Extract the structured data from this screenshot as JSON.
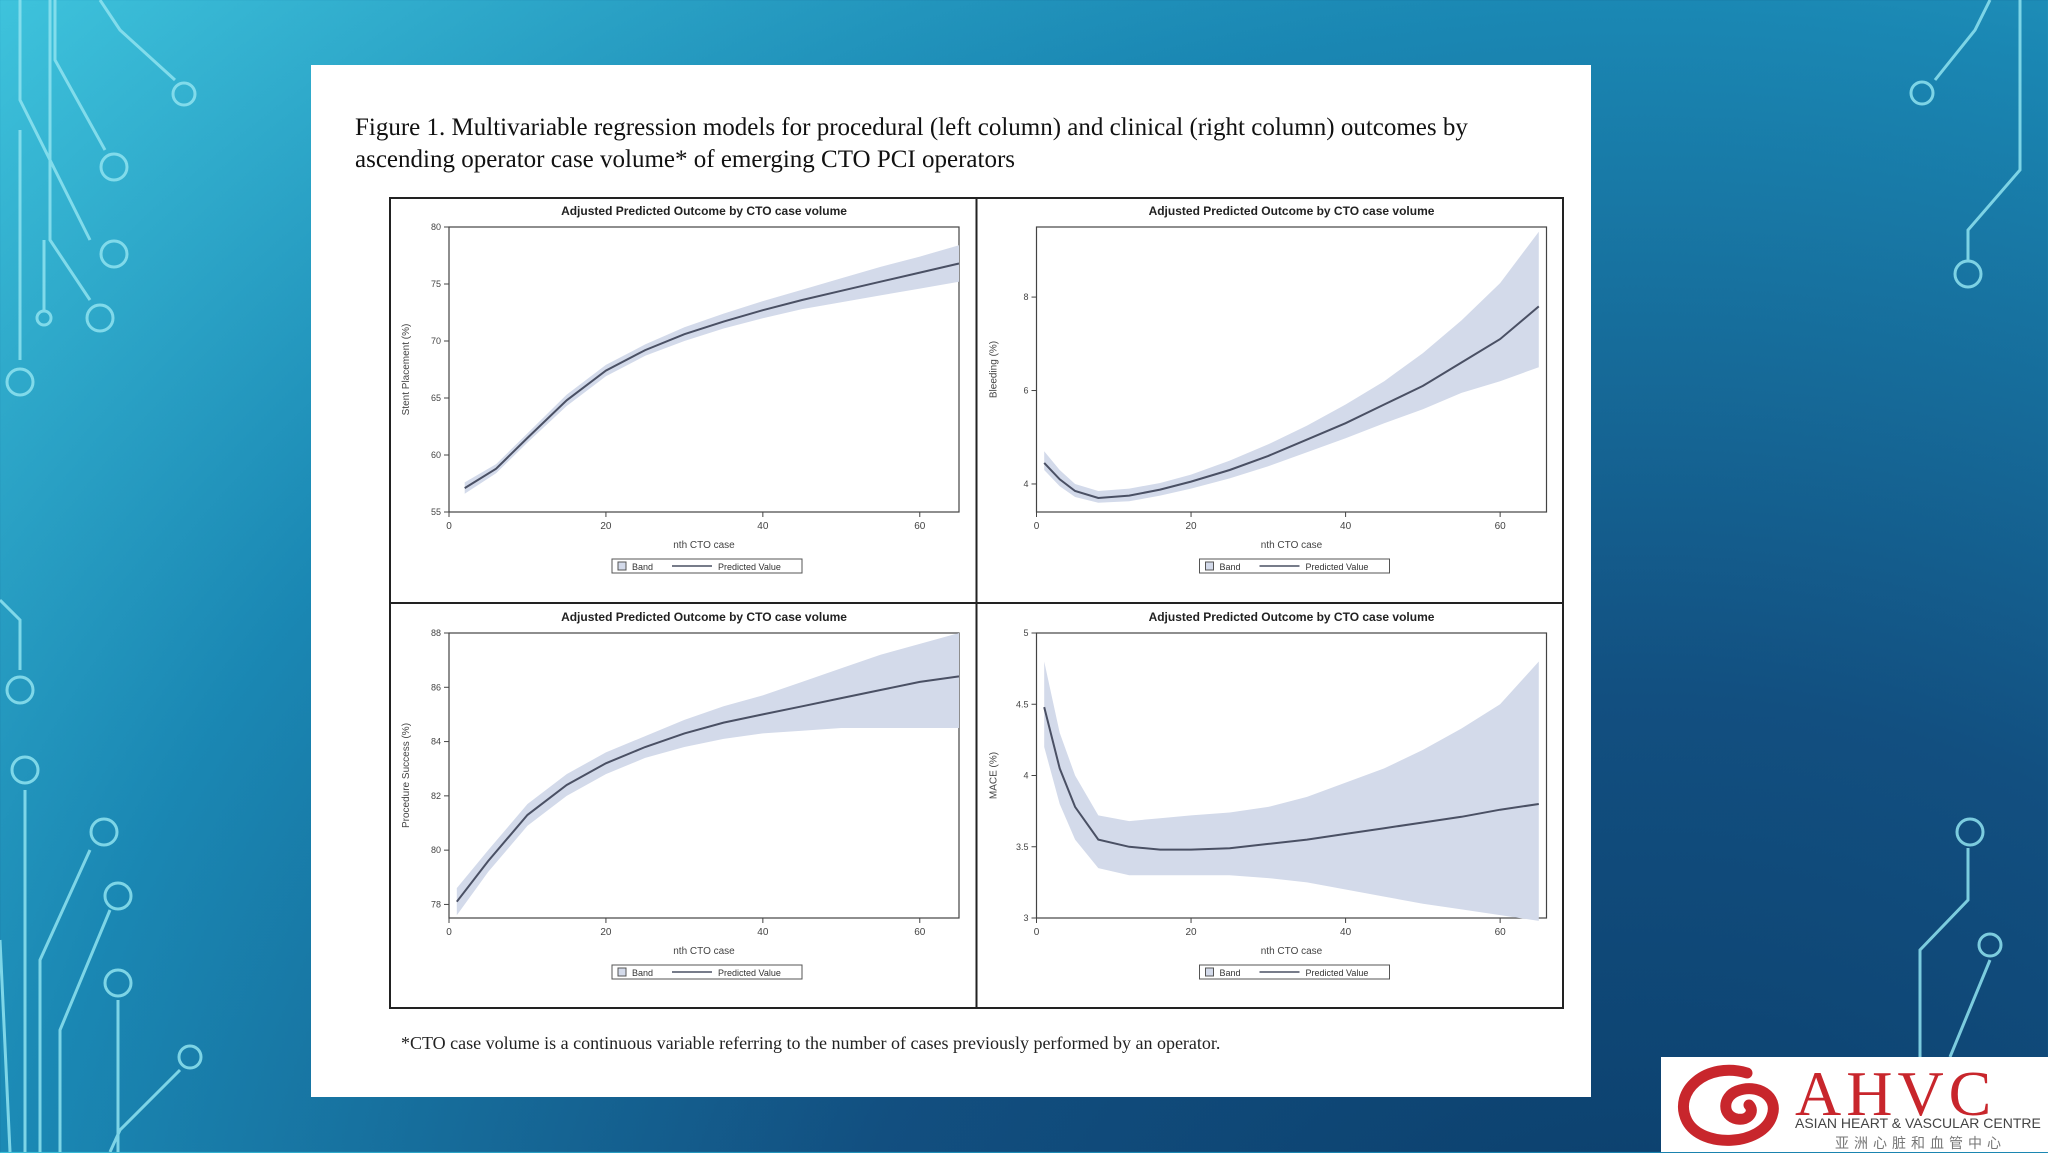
{
  "figure_title": "Figure 1. Multivariable regression models for procedural (left column) and clinical (right column) outcomes by ascending operator case volume* of emerging CTO PCI operators",
  "footnote": "*CTO case volume is a continuous variable referring to the number of cases previously performed by an operator.",
  "logo": {
    "text": "AHVC",
    "subtitle": "ASIAN HEART & VASCULAR CENTRE",
    "chinese": "亚洲心脏和血管中心"
  },
  "colors": {
    "band": "#d3daea",
    "line": "#4a5064",
    "frame": "#222222"
  },
  "chart_data": [
    {
      "type": "line",
      "title": "Adjusted Predicted Outcome by CTO case volume",
      "xlabel": "nth CTO case",
      "ylabel": "Stent Placement (%)",
      "xlim": [
        0,
        65
      ],
      "ylim": [
        55,
        80
      ],
      "xticks": [
        0,
        20,
        40,
        60
      ],
      "yticks": [
        55,
        60,
        65,
        70,
        75,
        80
      ],
      "x": [
        2,
        6,
        10,
        15,
        20,
        25,
        30,
        35,
        40,
        45,
        50,
        55,
        60,
        65
      ],
      "series": [
        {
          "name": "Predicted Value",
          "values": [
            57.1,
            58.8,
            61.5,
            64.8,
            67.4,
            69.2,
            70.6,
            71.7,
            72.7,
            73.6,
            74.4,
            75.2,
            76.0,
            76.8
          ]
        },
        {
          "name": "Band",
          "role": "lower",
          "values": [
            56.6,
            58.4,
            61.1,
            64.3,
            66.9,
            68.7,
            70.0,
            71.1,
            72.0,
            72.8,
            73.4,
            74.0,
            74.6,
            75.2
          ]
        },
        {
          "name": "Band",
          "role": "upper",
          "values": [
            57.6,
            59.2,
            61.9,
            65.3,
            67.9,
            69.7,
            71.2,
            72.4,
            73.5,
            74.5,
            75.5,
            76.5,
            77.4,
            78.4
          ]
        }
      ],
      "legend": [
        "Band",
        "Predicted Value"
      ],
      "legend_position": "bottom"
    },
    {
      "type": "line",
      "title": "Adjusted Predicted Outcome by CTO case volume",
      "xlabel": "nth CTO case",
      "ylabel": "Bleeding (%)",
      "xlim": [
        0,
        66
      ],
      "ylim": [
        3.4,
        9.5
      ],
      "xticks": [
        0,
        20,
        40,
        60
      ],
      "yticks": [
        4,
        6,
        8
      ],
      "x": [
        1,
        3,
        5,
        8,
        12,
        16,
        20,
        25,
        30,
        35,
        40,
        45,
        50,
        55,
        60,
        65
      ],
      "series": [
        {
          "name": "Predicted Value",
          "values": [
            4.45,
            4.1,
            3.85,
            3.7,
            3.75,
            3.88,
            4.05,
            4.3,
            4.6,
            4.95,
            5.3,
            5.7,
            6.1,
            6.6,
            7.1,
            7.8
          ]
        },
        {
          "name": "Band",
          "role": "lower",
          "values": [
            4.3,
            3.95,
            3.72,
            3.6,
            3.63,
            3.75,
            3.9,
            4.12,
            4.38,
            4.68,
            4.98,
            5.3,
            5.6,
            5.95,
            6.2,
            6.5
          ]
        },
        {
          "name": "Band",
          "role": "upper",
          "values": [
            4.7,
            4.3,
            4.0,
            3.85,
            3.9,
            4.02,
            4.2,
            4.5,
            4.85,
            5.25,
            5.7,
            6.2,
            6.8,
            7.5,
            8.3,
            9.4
          ]
        }
      ],
      "legend": [
        "Band",
        "Predicted Value"
      ],
      "legend_position": "bottom"
    },
    {
      "type": "line",
      "title": "Adjusted Predicted Outcome by CTO case volume",
      "xlabel": "nth CTO case",
      "ylabel": "Procedure Success (%)",
      "xlim": [
        0,
        65
      ],
      "ylim": [
        77.5,
        88
      ],
      "xticks": [
        0,
        20,
        40,
        60
      ],
      "yticks": [
        78,
        80,
        82,
        84,
        86,
        88
      ],
      "x": [
        1,
        5,
        10,
        15,
        20,
        25,
        30,
        35,
        40,
        45,
        50,
        55,
        60,
        65
      ],
      "series": [
        {
          "name": "Predicted Value",
          "values": [
            78.1,
            79.6,
            81.3,
            82.4,
            83.2,
            83.8,
            84.3,
            84.7,
            85.0,
            85.3,
            85.6,
            85.9,
            86.2,
            86.4
          ]
        },
        {
          "name": "Band",
          "role": "lower",
          "values": [
            77.6,
            79.2,
            80.9,
            82.0,
            82.8,
            83.4,
            83.8,
            84.1,
            84.3,
            84.4,
            84.5,
            84.5,
            84.5,
            84.5
          ]
        },
        {
          "name": "Band",
          "role": "upper",
          "values": [
            78.6,
            80.0,
            81.7,
            82.8,
            83.6,
            84.2,
            84.8,
            85.3,
            85.7,
            86.2,
            86.7,
            87.2,
            87.6,
            88.0
          ]
        }
      ],
      "legend": [
        "Band",
        "Predicted Value"
      ],
      "legend_position": "bottom"
    },
    {
      "type": "line",
      "title": "Adjusted Predicted Outcome by CTO case volume",
      "xlabel": "nth CTO case",
      "ylabel": "MACE (%)",
      "xlim": [
        0,
        66
      ],
      "ylim": [
        3.0,
        5.0
      ],
      "xticks": [
        0,
        20,
        40,
        60
      ],
      "yticks": [
        3.0,
        3.5,
        4.0,
        4.5,
        5.0
      ],
      "x": [
        1,
        3,
        5,
        8,
        12,
        16,
        20,
        25,
        30,
        35,
        40,
        45,
        50,
        55,
        60,
        65
      ],
      "series": [
        {
          "name": "Predicted Value",
          "values": [
            4.48,
            4.05,
            3.78,
            3.55,
            3.5,
            3.48,
            3.48,
            3.49,
            3.52,
            3.55,
            3.59,
            3.63,
            3.67,
            3.71,
            3.76,
            3.8
          ]
        },
        {
          "name": "Band",
          "role": "lower",
          "values": [
            4.2,
            3.8,
            3.55,
            3.35,
            3.3,
            3.3,
            3.3,
            3.3,
            3.28,
            3.25,
            3.2,
            3.15,
            3.1,
            3.06,
            3.02,
            2.98
          ]
        },
        {
          "name": "Band",
          "role": "upper",
          "values": [
            4.8,
            4.3,
            4.0,
            3.72,
            3.68,
            3.7,
            3.72,
            3.74,
            3.78,
            3.85,
            3.95,
            4.05,
            4.18,
            4.33,
            4.5,
            4.8
          ]
        }
      ],
      "legend": [
        "Band",
        "Predicted Value"
      ],
      "legend_position": "bottom"
    }
  ]
}
